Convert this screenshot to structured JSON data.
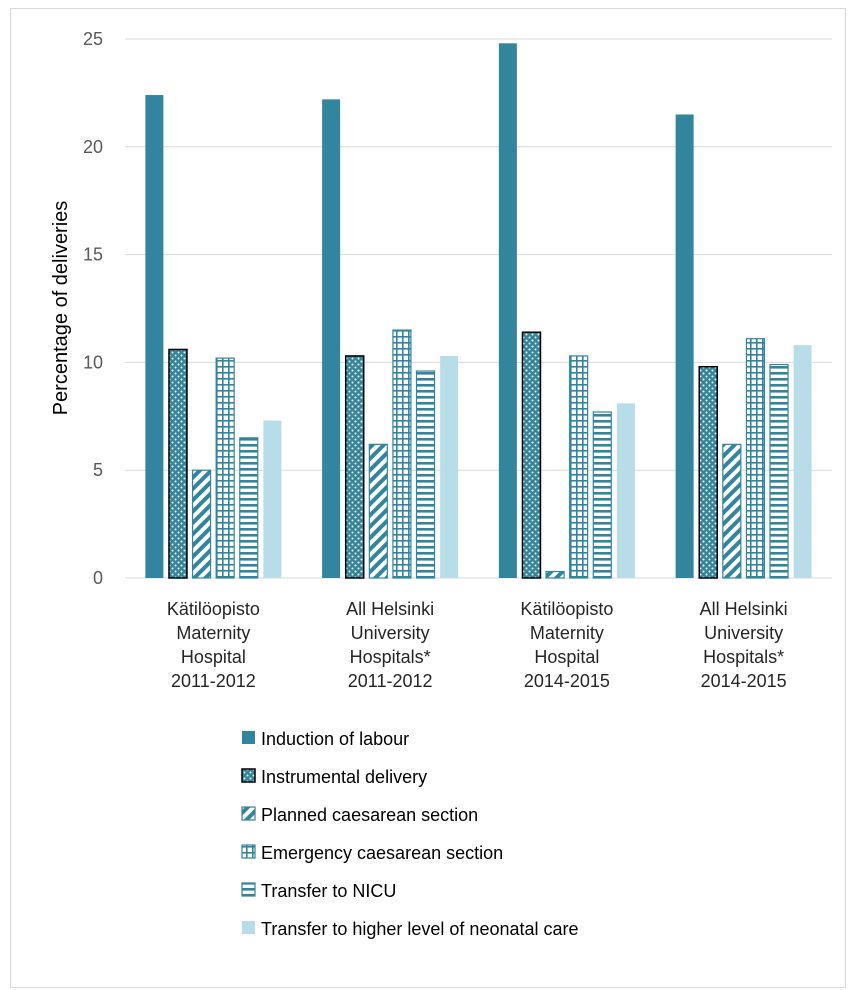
{
  "chart_data": {
    "type": "bar",
    "ylabel": "Percentage of deliveries",
    "ylim": [
      0,
      25
    ],
    "yticks": [
      0,
      5,
      10,
      15,
      20,
      25
    ],
    "grid": true,
    "legend_position": "bottom",
    "categories": [
      [
        "Kätilöopisto",
        "Maternity",
        "Hospital",
        "2011-2012"
      ],
      [
        "All Helsinki",
        "University",
        "Hospitals*",
        "2011-2012"
      ],
      [
        "Kätilöopisto",
        "Maternity",
        "Hospital",
        "2014-2015"
      ],
      [
        "All Helsinki",
        "University",
        "Hospitals*",
        "2014-2015"
      ]
    ],
    "series": [
      {
        "name": "Induction of labour",
        "values": [
          22.4,
          22.2,
          24.8,
          21.5
        ],
        "color": "#31859c",
        "pattern": "solid"
      },
      {
        "name": "Instrumental delivery",
        "values": [
          10.6,
          10.3,
          11.4,
          9.8
        ],
        "color": "#31859c",
        "pattern": "dots"
      },
      {
        "name": "Planned caesarean section",
        "values": [
          5.0,
          6.2,
          0.3,
          6.2
        ],
        "color": "#31859c",
        "pattern": "diagonal"
      },
      {
        "name": "Emergency caesarean section",
        "values": [
          10.2,
          11.5,
          10.3,
          11.1
        ],
        "color": "#31859c",
        "pattern": "grid"
      },
      {
        "name": "Transfer to NICU",
        "values": [
          6.5,
          9.6,
          7.7,
          9.9
        ],
        "color": "#31859c",
        "pattern": "horizontal"
      },
      {
        "name": "Transfer to higher level of neonatal care",
        "values": [
          7.3,
          10.3,
          8.1,
          10.8
        ],
        "color": "#b7dde8",
        "pattern": "solid"
      }
    ]
  }
}
